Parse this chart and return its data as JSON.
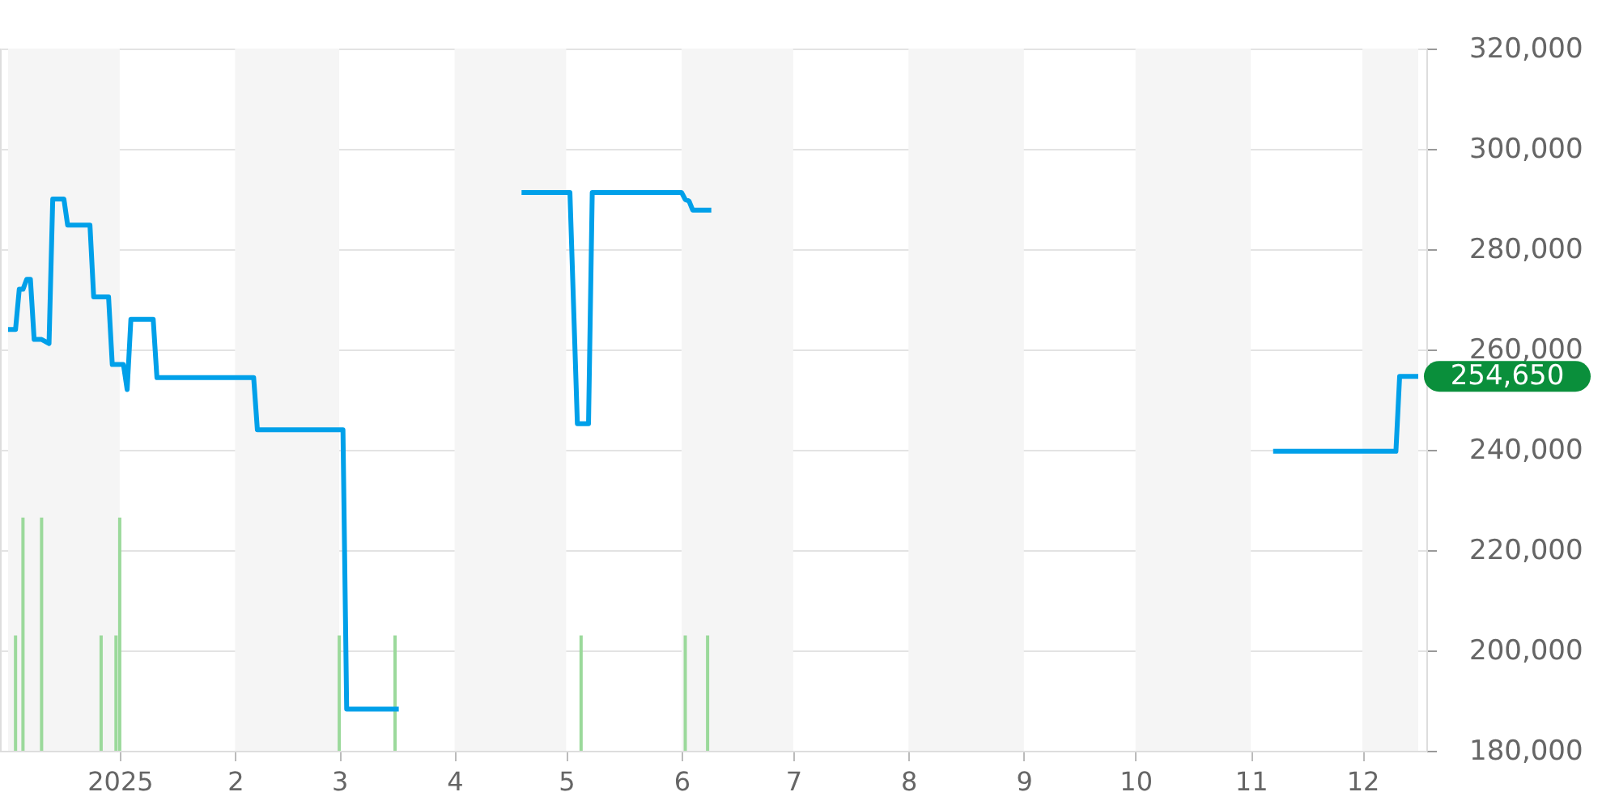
{
  "chart_data": {
    "type": "line",
    "series": [
      {
        "color": "#00a0e9",
        "x": [
          "2024-12-02",
          "2024-12-04",
          "2024-12-05",
          "2024-12-06",
          "2024-12-07",
          "2024-12-08",
          "2024-12-09",
          "2024-12-11",
          "2024-12-13",
          "2024-12-14",
          "2024-12-17",
          "2024-12-18",
          "2024-12-24",
          "2024-12-25",
          "2024-12-29",
          "2024-12-30",
          "2025-01-02",
          "2025-01-03",
          "2025-01-04",
          "2025-01-10",
          "2025-01-11",
          "2025-02-06",
          "2025-02-07",
          "2025-03-02",
          "2025-03-03",
          "2025-03-17",
          "2025-04-01",
          "2025-04-19",
          "2025-05-02",
          "2025-05-04",
          "2025-05-07",
          "2025-05-08",
          "2025-06-01",
          "2025-06-02",
          "2025-06-03",
          "2025-06-04",
          "2025-06-09",
          "2025-07-01",
          "2025-11-07",
          "2025-12-10",
          "2025-12-11",
          "2025-12-16"
        ],
        "values": [
          264000,
          264000,
          272000,
          272000,
          274000,
          274000,
          262000,
          262000,
          261200,
          290000,
          290000,
          284800,
          284800,
          270500,
          270500,
          257000,
          257000,
          252000,
          266000,
          266000,
          254400,
          254400,
          244000,
          244000,
          188300,
          188300,
          null,
          291300,
          291300,
          245200,
          245200,
          291300,
          291300,
          289900,
          289600,
          287800,
          287800,
          null,
          239700,
          239700,
          254650,
          254650
        ]
      },
      {
        "type": "bar",
        "color": "#9bd99b",
        "x": [
          "2024-12-04",
          "2024-12-06",
          "2024-12-11",
          "2024-12-27",
          "2024-12-31",
          "2025-01-01",
          "2025-03-01",
          "2025-03-16",
          "2025-05-05",
          "2025-06-02",
          "2025-06-08"
        ],
        "values": [
          203000,
          226500,
          226500,
          203000,
          203000,
          226500,
          203000,
          203000,
          203000,
          203000,
          203000
        ]
      }
    ],
    "xlim": [
      "2024-12-02",
      "2025-12-16"
    ],
    "xticks": [
      {
        "value": "2025-01-01",
        "label": "2025"
      },
      {
        "value": "2025-02-01",
        "label": "2"
      },
      {
        "value": "2025-03-01",
        "label": "3"
      },
      {
        "value": "2025-04-01",
        "label": "4"
      },
      {
        "value": "2025-05-01",
        "label": "5"
      },
      {
        "value": "2025-06-01",
        "label": "6"
      },
      {
        "value": "2025-07-01",
        "label": "7"
      },
      {
        "value": "2025-08-01",
        "label": "8"
      },
      {
        "value": "2025-09-01",
        "label": "9"
      },
      {
        "value": "2025-10-01",
        "label": "10"
      },
      {
        "value": "2025-11-01",
        "label": "11"
      },
      {
        "value": "2025-12-01",
        "label": "12"
      }
    ],
    "ylim": [
      180000,
      320000
    ],
    "yticks": [
      {
        "value": 180000,
        "label": "180,000"
      },
      {
        "value": 200000,
        "label": "200,000"
      },
      {
        "value": 220000,
        "label": "220,000"
      },
      {
        "value": 240000,
        "label": "240,000"
      },
      {
        "value": 260000,
        "label": "260,000"
      },
      {
        "value": 280000,
        "label": "280,000"
      },
      {
        "value": 300000,
        "label": "300,000"
      },
      {
        "value": 320000,
        "label": "320,000"
      }
    ],
    "grid": "y",
    "line_style": "solid",
    "bands": [
      {
        "axis": "x",
        "from": "2024-12-02",
        "to": "2025-01-01",
        "color": "#f5f5f5"
      },
      {
        "axis": "x",
        "from": "2025-02-01",
        "to": "2025-03-01",
        "color": "#f5f5f5"
      },
      {
        "axis": "x",
        "from": "2025-04-01",
        "to": "2025-05-01",
        "color": "#f5f5f5"
      },
      {
        "axis": "x",
        "from": "2025-06-01",
        "to": "2025-07-01",
        "color": "#f5f5f5"
      },
      {
        "axis": "x",
        "from": "2025-08-01",
        "to": "2025-09-01",
        "color": "#f5f5f5"
      },
      {
        "axis": "x",
        "from": "2025-10-01",
        "to": "2025-11-01",
        "color": "#f5f5f5"
      },
      {
        "axis": "x",
        "from": "2025-12-01",
        "to": "2025-12-16",
        "color": "#f5f5f5"
      }
    ],
    "annotations": [
      {
        "text": "254,650",
        "x": "2025-12-16",
        "y": 254650
      }
    ]
  }
}
